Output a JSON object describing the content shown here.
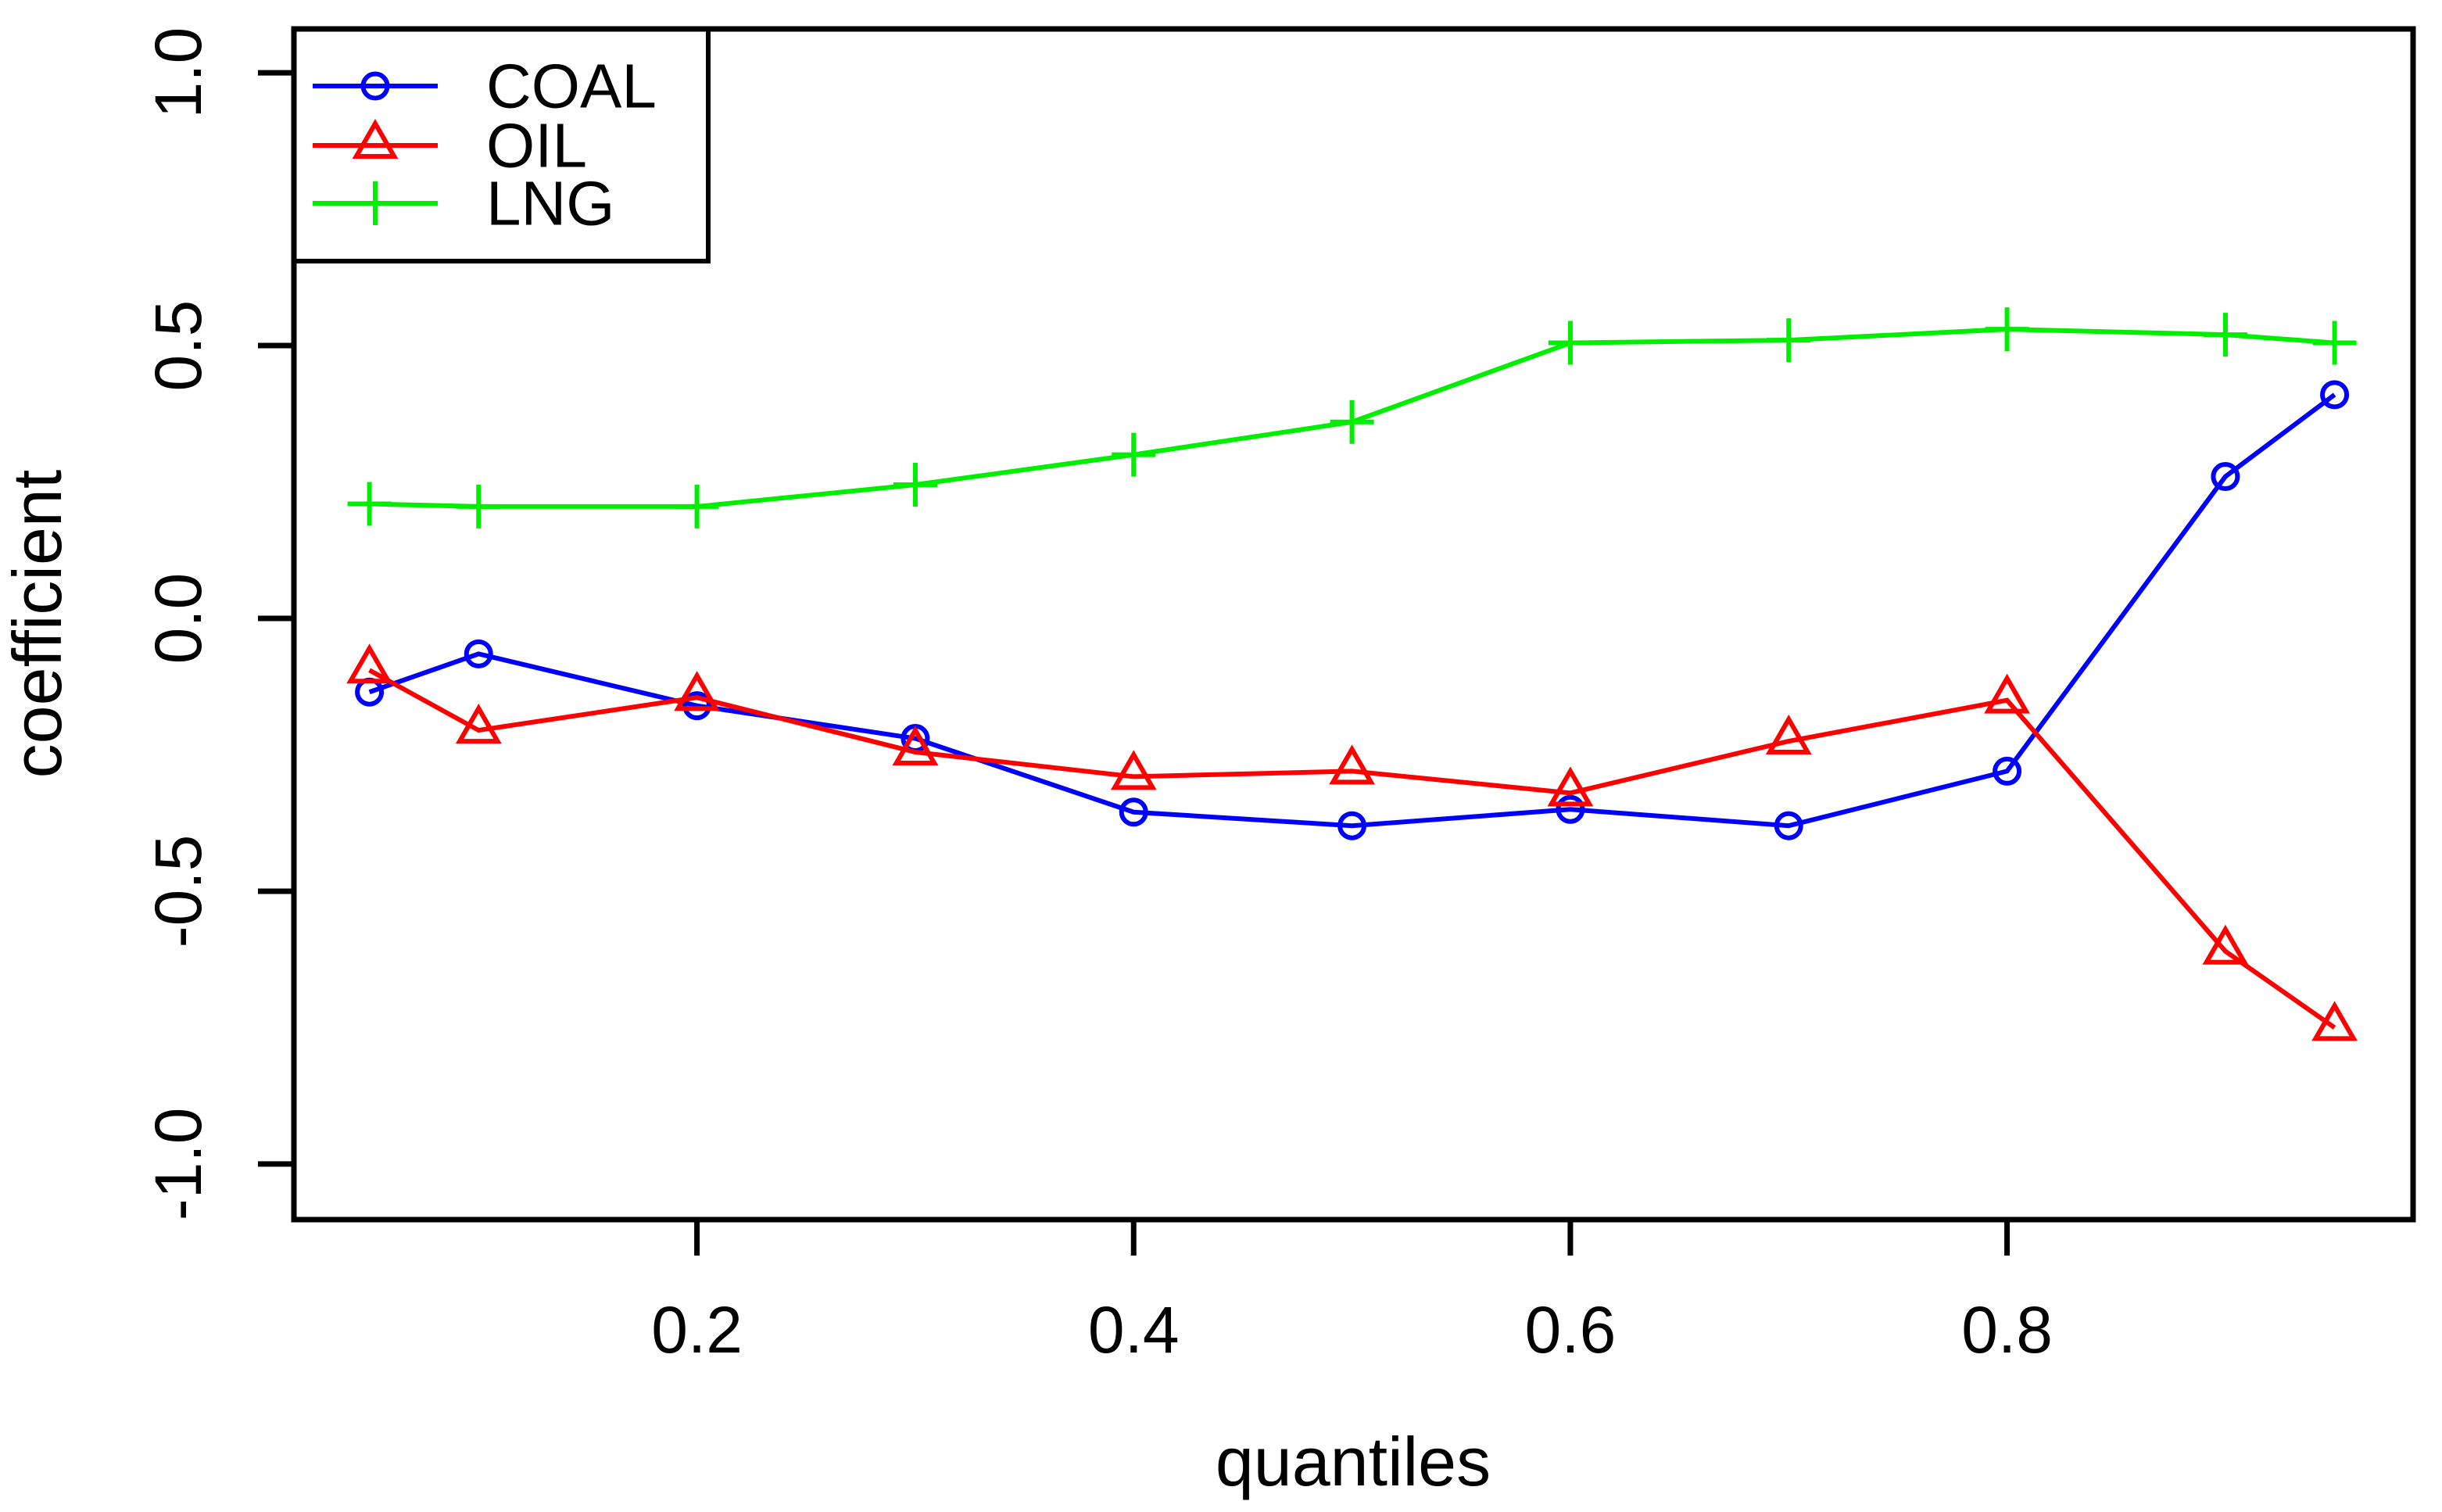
{
  "chart_data": {
    "type": "line",
    "title": "",
    "xlabel": "quantiles",
    "ylabel": "coefficient",
    "x": [
      0.05,
      0.1,
      0.2,
      0.3,
      0.4,
      0.5,
      0.6,
      0.7,
      0.8,
      0.9,
      0.95
    ],
    "series": [
      {
        "name": "COAL",
        "color": "#0000ff",
        "marker": "circle",
        "values": [
          -0.135,
          -0.065,
          -0.16,
          -0.22,
          -0.355,
          -0.38,
          -0.35,
          -0.38,
          -0.28,
          0.26,
          0.41
        ]
      },
      {
        "name": "OIL",
        "color": "#ff0000",
        "marker": "triangle",
        "values": [
          -0.095,
          -0.205,
          -0.145,
          -0.245,
          -0.29,
          -0.28,
          -0.32,
          -0.225,
          -0.15,
          -0.61,
          -0.75
        ]
      },
      {
        "name": "LNG",
        "color": "#00ee00",
        "marker": "plus",
        "values": [
          0.21,
          0.205,
          0.205,
          0.245,
          0.3,
          0.36,
          0.505,
          0.51,
          0.53,
          0.52,
          0.505
        ]
      }
    ],
    "x_ticks": [
      {
        "value": 0.2,
        "label": "0.2"
      },
      {
        "value": 0.4,
        "label": "0.4"
      },
      {
        "value": 0.6,
        "label": "0.6"
      },
      {
        "value": 0.8,
        "label": "0.8"
      }
    ],
    "y_ticks": [
      {
        "value": 1.0,
        "label": "1.0"
      },
      {
        "value": 0.5,
        "label": "0.5"
      },
      {
        "value": 0.0,
        "label": "0.0"
      },
      {
        "value": -0.5,
        "label": "-0.5"
      },
      {
        "value": -1.0,
        "label": "-1.0"
      }
    ],
    "xlim": [
      0.05,
      0.95
    ],
    "ylim": [
      -1.0,
      1.0
    ],
    "grid": false,
    "legend_position": "top-left",
    "legend_entries": [
      "COAL",
      "OIL",
      "LNG"
    ]
  }
}
